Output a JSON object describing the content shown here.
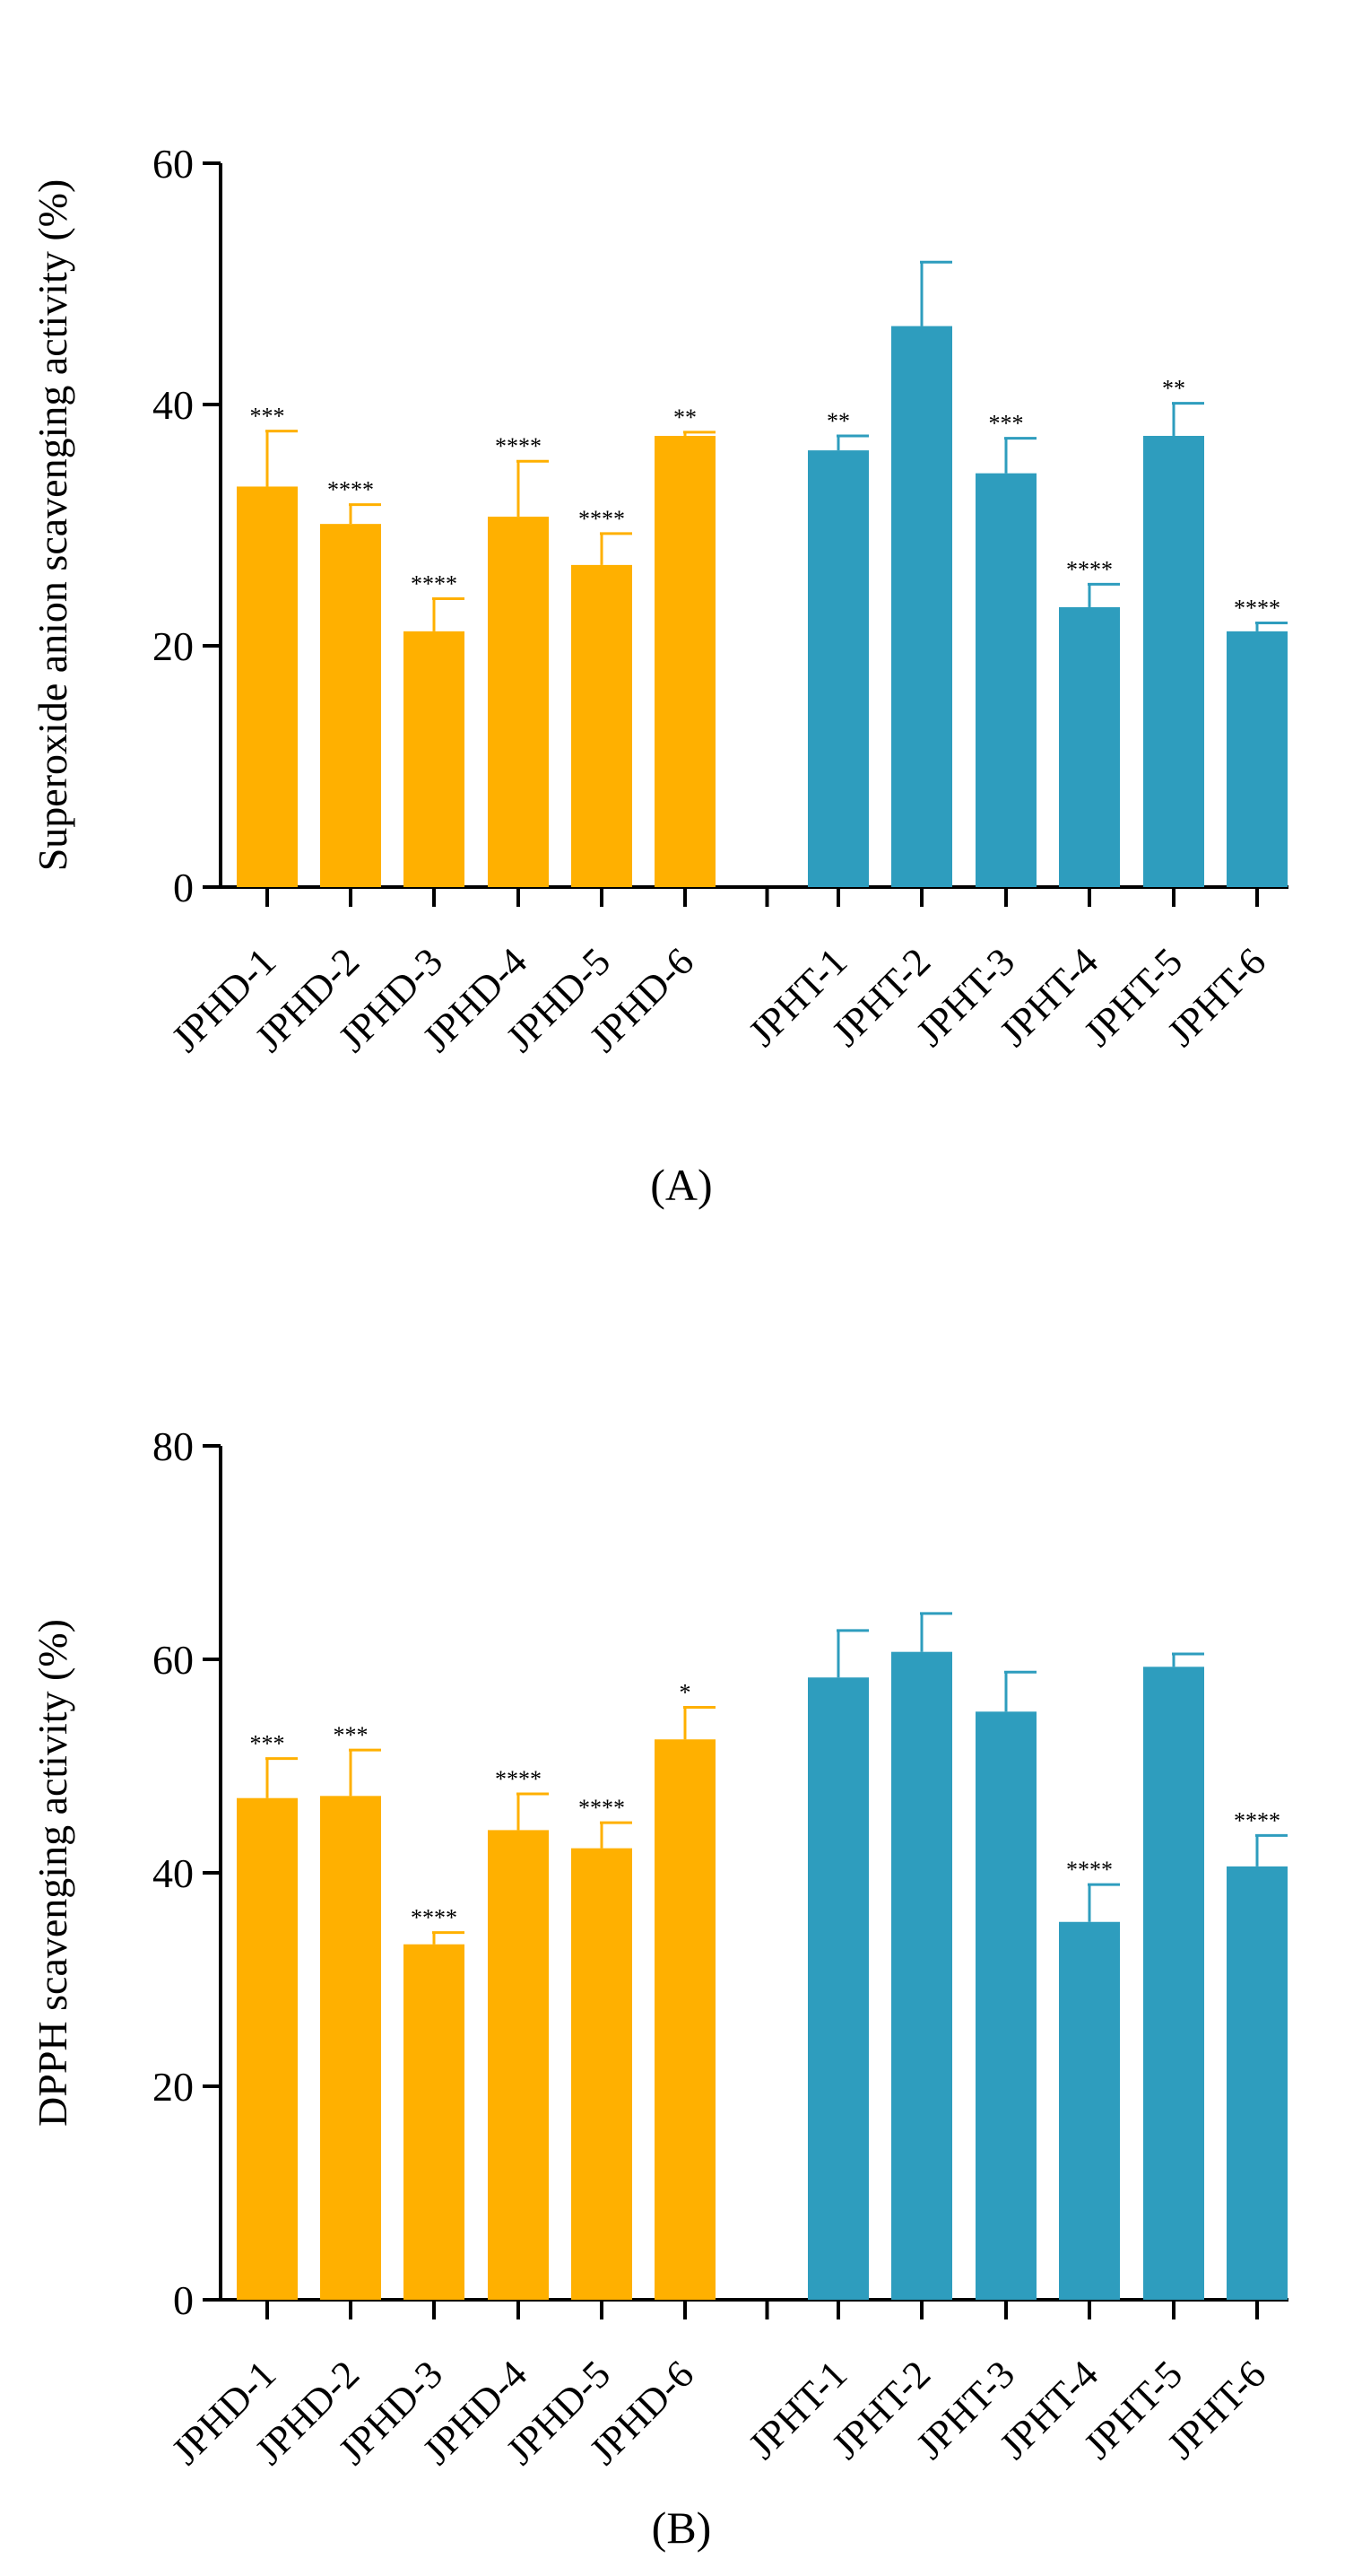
{
  "colors": {
    "jphd": "#FFB000",
    "jpht": "#2E9DBE",
    "axis": "#000000"
  },
  "chart_data": [
    {
      "type": "bar",
      "panel_label": "(A)",
      "ylabel": "Superoxide anion scavenging activity (%)",
      "ylim": [
        0,
        60
      ],
      "yticks": [
        0,
        20,
        40,
        60
      ],
      "groups": [
        {
          "name": "JPHD",
          "color": "#FFB000",
          "categories": [
            "JPHD-1",
            "JPHD-2",
            "JPHD-3",
            "JPHD-4",
            "JPHD-5",
            "JPHD-6"
          ],
          "values": [
            33.2,
            30.1,
            21.2,
            30.7,
            26.7,
            37.4
          ],
          "errors": [
            4.6,
            1.6,
            2.7,
            4.6,
            2.6,
            0.3
          ],
          "significance": [
            "***",
            "****",
            "****",
            "****",
            "****",
            "**"
          ]
        },
        {
          "name": "JPHT",
          "color": "#2E9DBE",
          "categories": [
            "JPHT-1",
            "JPHT-2",
            "JPHT-3",
            "JPHT-4",
            "JPHT-5",
            "JPHT-6"
          ],
          "values": [
            36.2,
            46.5,
            34.3,
            23.2,
            37.4,
            21.2
          ],
          "errors": [
            1.2,
            5.3,
            2.9,
            1.9,
            2.7,
            0.7
          ],
          "significance": [
            "**",
            "",
            "***",
            "****",
            "**",
            "****"
          ]
        }
      ]
    },
    {
      "type": "bar",
      "panel_label": "(B)",
      "ylabel": "DPPH scavenging activity (%)",
      "ylim": [
        0,
        80
      ],
      "yticks": [
        0,
        20,
        40,
        60,
        80
      ],
      "groups": [
        {
          "name": "JPHD",
          "color": "#FFB000",
          "categories": [
            "JPHD-1",
            "JPHD-2",
            "JPHD-3",
            "JPHD-4",
            "JPHD-5",
            "JPHD-6"
          ],
          "values": [
            47.0,
            47.2,
            33.3,
            44.0,
            42.3,
            52.5
          ],
          "errors": [
            3.7,
            4.3,
            1.1,
            3.4,
            2.4,
            3.0
          ],
          "significance": [
            "***",
            "***",
            "****",
            "****",
            "****",
            "*"
          ]
        },
        {
          "name": "JPHT",
          "color": "#2E9DBE",
          "categories": [
            "JPHT-1",
            "JPHT-2",
            "JPHT-3",
            "JPHT-4",
            "JPHT-5",
            "JPHT-6"
          ],
          "values": [
            58.3,
            60.7,
            55.1,
            35.4,
            59.3,
            40.6
          ],
          "errors": [
            4.4,
            3.6,
            3.7,
            3.5,
            1.2,
            2.9
          ],
          "significance": [
            "",
            "",
            "",
            "****",
            "",
            "****"
          ]
        }
      ]
    }
  ]
}
